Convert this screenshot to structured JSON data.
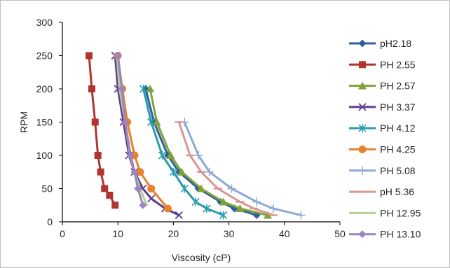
{
  "chart_data": {
    "type": "line",
    "title": "",
    "xlabel": "Viscosity (cP)",
    "ylabel": "RPM",
    "xlim": [
      0,
      50
    ],
    "ylim": [
      0,
      300
    ],
    "x_ticks": [
      0,
      10,
      20,
      30,
      40,
      50
    ],
    "y_ticks": [
      0,
      50,
      100,
      150,
      200,
      250,
      300
    ],
    "grid": false,
    "legend_position": "right",
    "series": [
      {
        "name": "pH2.18",
        "color": "#2f5f9e",
        "marker": "diamond",
        "points": [
          [
            15,
            200
          ],
          [
            16.5,
            150
          ],
          [
            19,
            100
          ],
          [
            21,
            75
          ],
          [
            24.5,
            50
          ],
          [
            28.5,
            30
          ],
          [
            31,
            20
          ],
          [
            35,
            10
          ]
        ]
      },
      {
        "name": "PH 2.55",
        "color": "#b0352f",
        "marker": "square",
        "points": [
          [
            4.8,
            250
          ],
          [
            5.3,
            200
          ],
          [
            5.9,
            150
          ],
          [
            6.4,
            100
          ],
          [
            6.9,
            75
          ],
          [
            7.6,
            50
          ],
          [
            8.5,
            40
          ],
          [
            9.5,
            25
          ]
        ]
      },
      {
        "name": "PH 2.57",
        "color": "#7fa33a",
        "marker": "triangle",
        "points": [
          [
            15.8,
            200
          ],
          [
            17,
            150
          ],
          [
            19.5,
            100
          ],
          [
            21.5,
            75
          ],
          [
            25,
            50
          ],
          [
            29,
            30
          ],
          [
            32,
            20
          ],
          [
            37,
            10
          ]
        ]
      },
      {
        "name": "PH 3.37",
        "color": "#5e3f8e",
        "marker": "x",
        "points": [
          [
            9.5,
            250
          ],
          [
            10,
            200
          ],
          [
            11,
            150
          ],
          [
            12,
            100
          ],
          [
            13,
            75
          ],
          [
            14.5,
            50
          ],
          [
            16,
            35
          ],
          [
            18.5,
            20
          ],
          [
            21,
            10
          ]
        ]
      },
      {
        "name": "PH 4.12",
        "color": "#2b9bb0",
        "marker": "asterisk",
        "points": [
          [
            14.6,
            200
          ],
          [
            16,
            150
          ],
          [
            18,
            100
          ],
          [
            20,
            75
          ],
          [
            22,
            50
          ],
          [
            24,
            30
          ],
          [
            26,
            20
          ],
          [
            29,
            10
          ]
        ]
      },
      {
        "name": "PH 4.25",
        "color": "#e5822b",
        "marker": "circle",
        "points": [
          [
            10,
            250
          ],
          [
            10.8,
            200
          ],
          [
            11.7,
            150
          ],
          [
            13,
            100
          ],
          [
            14,
            75
          ],
          [
            16,
            50
          ],
          [
            19,
            20
          ]
        ]
      },
      {
        "name": "PH 5.08",
        "color": "#8eaad6",
        "marker": "plus",
        "points": [
          [
            22,
            150
          ],
          [
            24.5,
            100
          ],
          [
            26.5,
            75
          ],
          [
            30.5,
            50
          ],
          [
            35,
            30
          ],
          [
            38,
            20
          ],
          [
            43,
            10
          ]
        ]
      },
      {
        "name": "pH 5.36",
        "color": "#d99694",
        "marker": "dash",
        "points": [
          [
            21,
            150
          ],
          [
            23,
            100
          ],
          [
            25,
            75
          ],
          [
            28,
            50
          ],
          [
            32,
            30
          ],
          [
            34.5,
            20
          ],
          [
            38,
            10
          ]
        ]
      },
      {
        "name": "PH 12.95",
        "color": "#b3d18e",
        "marker": "line",
        "points": [
          [
            9.8,
            250
          ],
          [
            10.3,
            200
          ],
          [
            11.3,
            150
          ],
          [
            12.2,
            100
          ],
          [
            13,
            75
          ],
          [
            14,
            50
          ],
          [
            15.2,
            25
          ]
        ]
      },
      {
        "name": "PH 13.10",
        "color": "#9a85c4",
        "marker": "diamond",
        "points": [
          [
            10,
            250
          ],
          [
            10.7,
            200
          ],
          [
            11.3,
            150
          ],
          [
            12.3,
            100
          ],
          [
            13,
            75
          ],
          [
            13.6,
            50
          ],
          [
            14.5,
            25
          ]
        ]
      }
    ]
  }
}
